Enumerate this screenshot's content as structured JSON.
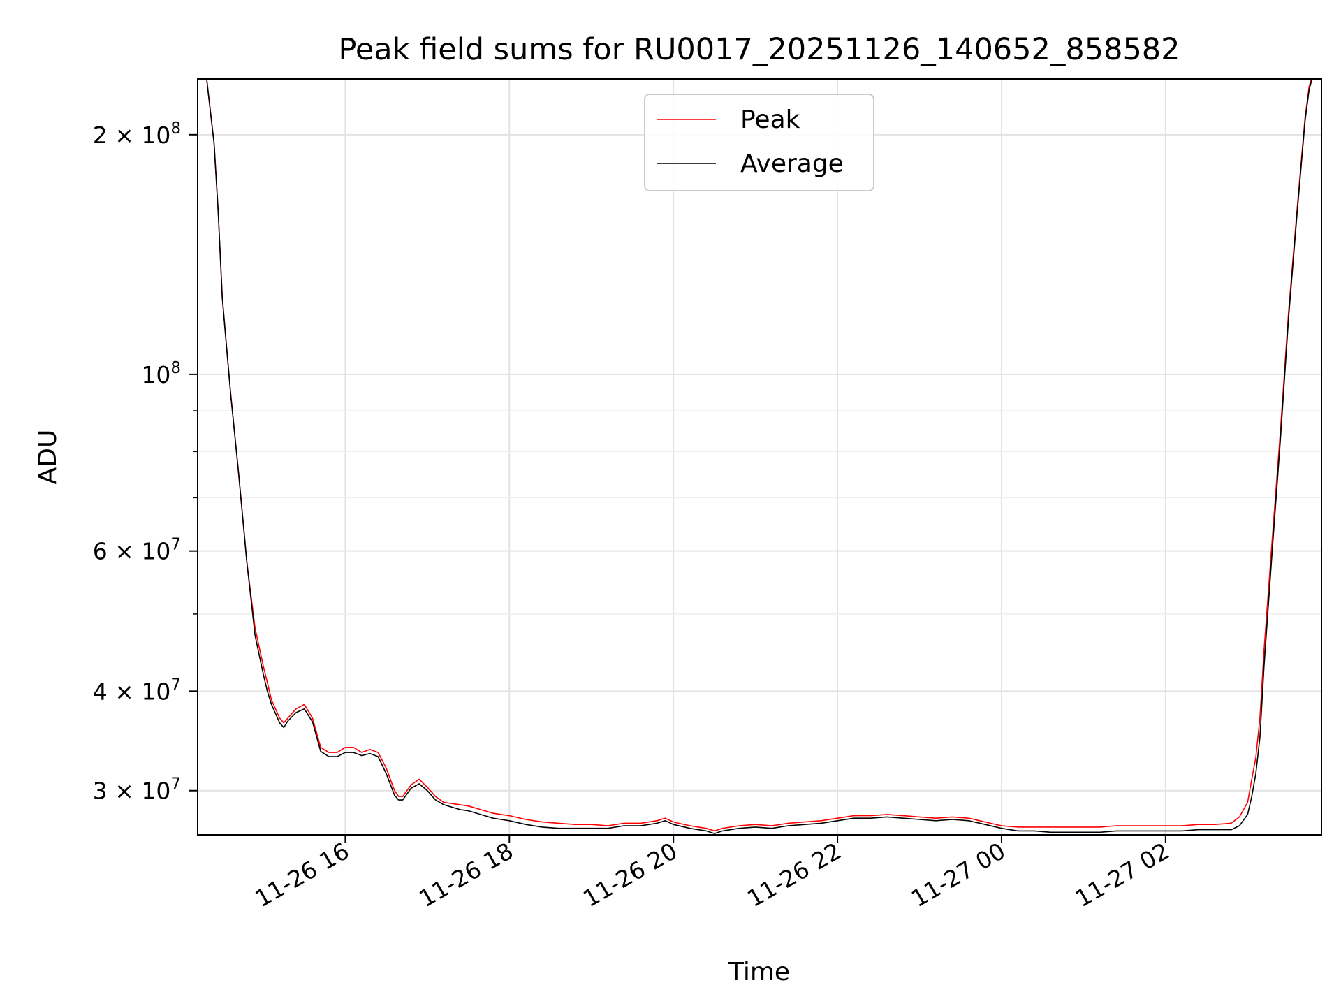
{
  "chart_data": {
    "type": "line",
    "title": "Peak field sums for RU0017_20251126_140652_858582",
    "xlabel": "Time",
    "ylabel": "ADU",
    "yscale": "log",
    "grid": true,
    "legend_position": "upper center",
    "xlim_hours": [
      -1.8,
      11.9
    ],
    "xlim_labels": [
      "11-26 14:12",
      "11-27 03:54"
    ],
    "ylim": [
      26400000,
      235000000
    ],
    "x_ticks": [
      {
        "hour": 0,
        "label": "11-26 16"
      },
      {
        "hour": 2,
        "label": "11-26 18"
      },
      {
        "hour": 4,
        "label": "11-26 20"
      },
      {
        "hour": 6,
        "label": "11-26 22"
      },
      {
        "hour": 8,
        "label": "11-27 00"
      },
      {
        "hour": 10,
        "label": "11-27 02"
      }
    ],
    "y_ticks": [
      {
        "value": 30000000,
        "label_base": "3 × 10",
        "label_exp": "7"
      },
      {
        "value": 40000000,
        "label_base": "4 × 10",
        "label_exp": "7"
      },
      {
        "value": 60000000,
        "label_base": "6 × 10",
        "label_exp": "7"
      },
      {
        "value": 100000000,
        "label_base": "10",
        "label_exp": "8"
      },
      {
        "value": 200000000,
        "label_base": "2 × 10",
        "label_exp": "8"
      }
    ],
    "y_minor_ticks": [
      50000000,
      70000000,
      80000000,
      90000000
    ],
    "series": [
      {
        "name": "Peak",
        "color": "#ff0000",
        "x_hours": [
          -1.7,
          -1.6,
          -1.55,
          -1.5,
          -1.4,
          -1.3,
          -1.2,
          -1.1,
          -1.0,
          -0.95,
          -0.9,
          -0.8,
          -0.75,
          -0.7,
          -0.6,
          -0.5,
          -0.4,
          -0.3,
          -0.2,
          -0.1,
          0.0,
          0.1,
          0.2,
          0.3,
          0.4,
          0.5,
          0.6,
          0.65,
          0.7,
          0.8,
          0.9,
          1.0,
          1.1,
          1.2,
          1.3,
          1.4,
          1.5,
          1.6,
          1.7,
          1.8,
          1.9,
          2.0,
          2.2,
          2.4,
          2.6,
          2.8,
          3.0,
          3.2,
          3.4,
          3.6,
          3.8,
          3.9,
          4.0,
          4.2,
          4.4,
          4.5,
          4.6,
          4.8,
          5.0,
          5.2,
          5.4,
          5.6,
          5.8,
          6.0,
          6.2,
          6.4,
          6.6,
          6.8,
          7.0,
          7.2,
          7.4,
          7.6,
          7.8,
          8.0,
          8.2,
          8.4,
          8.6,
          8.8,
          9.0,
          9.2,
          9.4,
          9.6,
          9.8,
          10.0,
          10.2,
          10.4,
          10.6,
          10.8,
          10.9,
          11.0,
          11.05,
          11.1,
          11.15,
          11.2,
          11.3,
          11.4,
          11.5,
          11.6,
          11.7,
          11.75,
          11.8,
          11.85
        ],
        "values": [
          240000000,
          195000000,
          160000000,
          125000000,
          95000000,
          75000000,
          58000000,
          48000000,
          43000000,
          41000000,
          39000000,
          37000000,
          36500000,
          37000000,
          38000000,
          38500000,
          37000000,
          34000000,
          33500000,
          33500000,
          34000000,
          34000000,
          33500000,
          33800000,
          33500000,
          32000000,
          30000000,
          29500000,
          29500000,
          30500000,
          31000000,
          30300000,
          29500000,
          29000000,
          28900000,
          28800000,
          28700000,
          28500000,
          28300000,
          28100000,
          28000000,
          27900000,
          27600000,
          27400000,
          27300000,
          27200000,
          27200000,
          27100000,
          27300000,
          27300000,
          27500000,
          27700000,
          27400000,
          27100000,
          26900000,
          26700000,
          26900000,
          27100000,
          27200000,
          27100000,
          27300000,
          27400000,
          27500000,
          27700000,
          27900000,
          27900000,
          28000000,
          27900000,
          27800000,
          27700000,
          27800000,
          27700000,
          27400000,
          27100000,
          27000000,
          27000000,
          27000000,
          27000000,
          27000000,
          27000000,
          27100000,
          27100000,
          27100000,
          27100000,
          27100000,
          27200000,
          27200000,
          27300000,
          27800000,
          29000000,
          31000000,
          33000000,
          37000000,
          45000000,
          62000000,
          85000000,
          120000000,
          160000000,
          210000000,
          230000000,
          240000000,
          245000000
        ]
      },
      {
        "name": "Average",
        "color": "#000000",
        "x_hours": [
          -1.7,
          -1.6,
          -1.55,
          -1.5,
          -1.4,
          -1.3,
          -1.2,
          -1.1,
          -1.0,
          -0.95,
          -0.9,
          -0.8,
          -0.75,
          -0.7,
          -0.6,
          -0.5,
          -0.4,
          -0.3,
          -0.2,
          -0.1,
          0.0,
          0.1,
          0.2,
          0.3,
          0.4,
          0.5,
          0.6,
          0.65,
          0.7,
          0.8,
          0.9,
          1.0,
          1.1,
          1.2,
          1.3,
          1.4,
          1.5,
          1.6,
          1.7,
          1.8,
          1.9,
          2.0,
          2.2,
          2.4,
          2.6,
          2.8,
          3.0,
          3.2,
          3.4,
          3.6,
          3.8,
          3.9,
          4.0,
          4.2,
          4.4,
          4.5,
          4.6,
          4.8,
          5.0,
          5.2,
          5.4,
          5.6,
          5.8,
          6.0,
          6.2,
          6.4,
          6.6,
          6.8,
          7.0,
          7.2,
          7.4,
          7.6,
          7.8,
          8.0,
          8.2,
          8.4,
          8.6,
          8.8,
          9.0,
          9.2,
          9.4,
          9.6,
          9.8,
          10.0,
          10.2,
          10.4,
          10.6,
          10.8,
          10.9,
          11.0,
          11.05,
          11.1,
          11.15,
          11.2,
          11.3,
          11.4,
          11.5,
          11.6,
          11.7,
          11.75,
          11.8,
          11.85
        ],
        "values": [
          240000000,
          195000000,
          160000000,
          125000000,
          95000000,
          75000000,
          58000000,
          47000000,
          42000000,
          40000000,
          38500000,
          36500000,
          36000000,
          36700000,
          37600000,
          38000000,
          36600000,
          33600000,
          33100000,
          33100000,
          33500000,
          33500000,
          33200000,
          33400000,
          33100000,
          31500000,
          29600000,
          29200000,
          29200000,
          30200000,
          30600000,
          30000000,
          29200000,
          28800000,
          28600000,
          28400000,
          28300000,
          28100000,
          27900000,
          27700000,
          27600000,
          27500000,
          27200000,
          27000000,
          26900000,
          26900000,
          26900000,
          26900000,
          27100000,
          27100000,
          27300000,
          27500000,
          27200000,
          26900000,
          26700000,
          26500000,
          26700000,
          26900000,
          27000000,
          26900000,
          27100000,
          27200000,
          27300000,
          27500000,
          27700000,
          27700000,
          27800000,
          27700000,
          27600000,
          27500000,
          27600000,
          27500000,
          27200000,
          26900000,
          26700000,
          26700000,
          26600000,
          26600000,
          26600000,
          26600000,
          26700000,
          26700000,
          26700000,
          26700000,
          26700000,
          26800000,
          26800000,
          26800000,
          27100000,
          28000000,
          29500000,
          31500000,
          35000000,
          43000000,
          60000000,
          83000000,
          118000000,
          158000000,
          208000000,
          228000000,
          238000000,
          243000000
        ]
      }
    ]
  }
}
